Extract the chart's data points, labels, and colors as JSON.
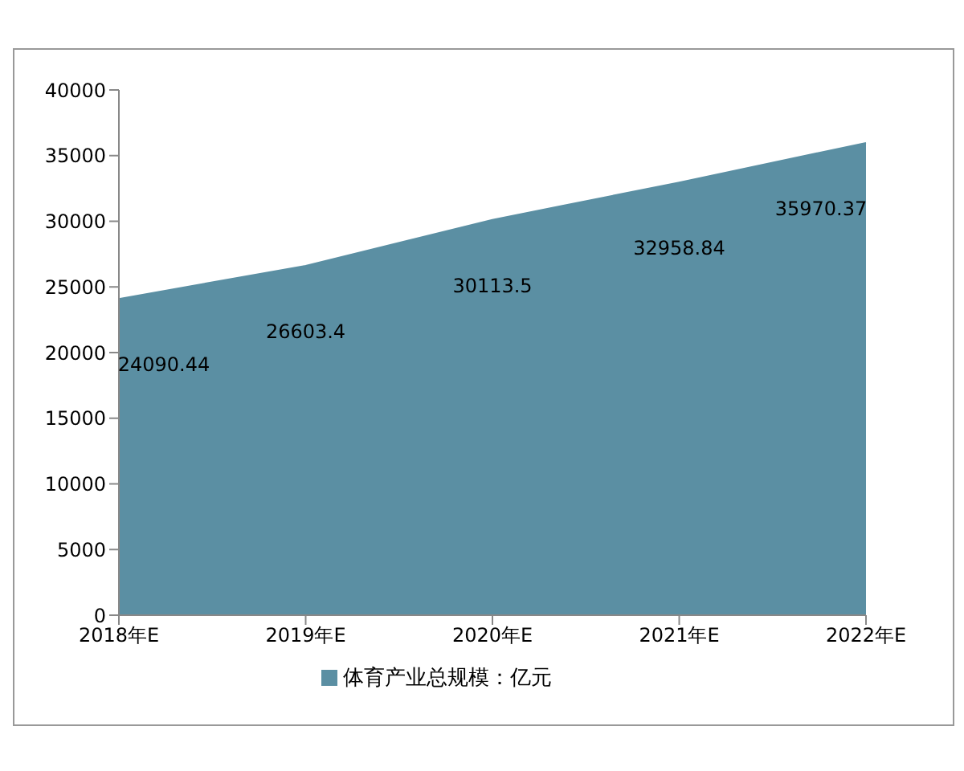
{
  "chart_data": {
    "type": "area",
    "categories": [
      "2018年E",
      "2019年E",
      "2020年E",
      "2021年E",
      "2022年E"
    ],
    "series": [
      {
        "name": "体育产业总规模：亿元",
        "color": "#5b8fa3",
        "values": [
          24090.44,
          26603.4,
          30113.5,
          32958.84,
          35970.37
        ]
      }
    ],
    "ylim": [
      0,
      40000
    ],
    "yticks": [
      0,
      5000,
      10000,
      15000,
      20000,
      25000,
      30000,
      35000,
      40000
    ],
    "grid": false,
    "legend": "bottom",
    "data_labels": true
  }
}
